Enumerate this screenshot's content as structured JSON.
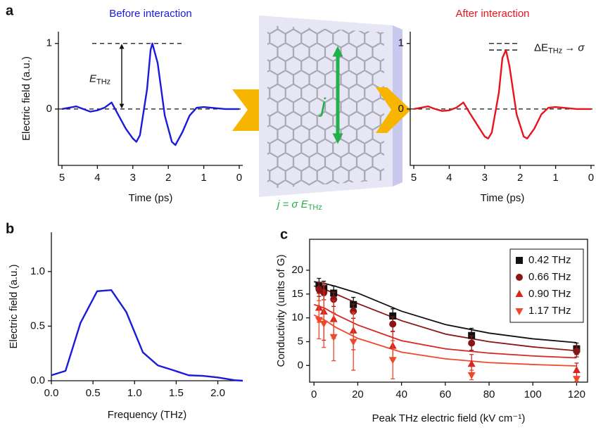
{
  "chart_data": [
    {
      "type": "line",
      "panel_label": "a",
      "title": "Before interaction",
      "color": "#1a1adb",
      "xlabel": "Time (ps)",
      "ylabel": "Electric field (a.u.)",
      "annotation": {
        "text": "E",
        "subscript": "THz"
      },
      "x": [
        5.0,
        4.8,
        4.6,
        4.4,
        4.2,
        4.0,
        3.8,
        3.6,
        3.4,
        3.2,
        3.0,
        2.9,
        2.8,
        2.6,
        2.5,
        2.45,
        2.3,
        2.1,
        1.9,
        1.8,
        1.6,
        1.4,
        1.2,
        1.0,
        0.8,
        0.4,
        0.0
      ],
      "values": [
        0.0,
        0.02,
        0.04,
        0.0,
        -0.04,
        -0.02,
        0.02,
        0.1,
        -0.1,
        -0.3,
        -0.45,
        -0.5,
        -0.4,
        0.3,
        0.9,
        1.0,
        0.7,
        -0.1,
        -0.5,
        -0.55,
        -0.35,
        -0.1,
        0.02,
        0.03,
        0.02,
        0.0,
        0.0
      ],
      "xlim": [
        5.1,
        -0.1
      ],
      "xticks": [
        5,
        4,
        3,
        2,
        1,
        0
      ],
      "ylim": [
        -0.86,
        1.18
      ],
      "yticks": [
        0,
        1
      ]
    },
    {
      "type": "line",
      "title": "After interaction",
      "color": "#e8141c",
      "xlabel": "Time (ps)",
      "annotation": {
        "text": "ΔE",
        "subscript": "THz",
        "suffix": "→ σ"
      },
      "x": [
        5.0,
        4.8,
        4.6,
        4.4,
        4.2,
        4.0,
        3.8,
        3.6,
        3.4,
        3.2,
        3.0,
        2.9,
        2.8,
        2.6,
        2.5,
        2.4,
        2.3,
        2.1,
        1.9,
        1.8,
        1.6,
        1.4,
        1.2,
        1.0,
        0.8,
        0.4,
        0.0
      ],
      "values": [
        0.0,
        0.02,
        0.04,
        0.0,
        -0.03,
        -0.02,
        0.02,
        0.1,
        -0.08,
        -0.25,
        -0.42,
        -0.45,
        -0.36,
        0.25,
        0.78,
        0.9,
        0.65,
        -0.08,
        -0.42,
        -0.45,
        -0.3,
        -0.08,
        0.02,
        0.03,
        0.02,
        0.0,
        0.0
      ],
      "xlim": [
        5.1,
        -0.1
      ],
      "xticks": [
        5,
        4,
        3,
        2,
        1,
        0
      ],
      "ylim": [
        -0.86,
        1.18
      ],
      "yticks": [
        0,
        1
      ]
    },
    {
      "type": "line",
      "panel_label": "b",
      "color": "#1a1adb",
      "xlabel": "Frequency (THz)",
      "ylabel": "Electric field (a.u.)",
      "x": [
        0,
        0.17,
        0.35,
        0.55,
        0.72,
        0.9,
        1.1,
        1.28,
        1.45,
        1.65,
        1.82,
        2.0,
        2.2,
        2.3
      ],
      "values": [
        0.05,
        0.09,
        0.53,
        0.82,
        0.83,
        0.63,
        0.26,
        0.14,
        0.1,
        0.05,
        0.045,
        0.03,
        0.005,
        0.0
      ],
      "xlim": [
        0,
        2.3
      ],
      "xticks": [
        {
          "value": 0,
          "label": "0.0"
        },
        0.5,
        {
          "value": 1,
          "label": "1.0"
        },
        1.5,
        {
          "value": 2,
          "label": "2.0"
        }
      ],
      "ylim": [
        0,
        1.36
      ],
      "yticks": [
        {
          "value": 0,
          "label": "0.0"
        },
        0.5,
        {
          "value": 1,
          "label": "1.0"
        }
      ]
    },
    {
      "type": "scatter",
      "panel_label": "c",
      "xlabel": "Peak THz electric field (kV cm⁻¹)",
      "ylabel": "Conductivity (units of G)",
      "x": [
        2.3,
        4.5,
        9,
        18,
        36,
        72,
        120
      ],
      "fit_x": [
        0,
        5,
        10,
        20,
        40,
        60,
        80,
        100,
        120
      ],
      "series": [
        {
          "name": "0.42 THz",
          "color": "#111111",
          "marker": "square",
          "values": [
            16.8,
            16.2,
            15.2,
            12.8,
            10.4,
            6.3,
            3.5
          ],
          "errors": [
            1.5,
            1.5,
            1.5,
            1.5,
            1.5,
            1.5,
            1.2
          ],
          "fit": [
            17.6,
            17.2,
            16.6,
            15.2,
            11.4,
            8.6,
            6.8,
            5.6,
            4.8
          ]
        },
        {
          "name": "0.66 THz",
          "color": "#8b1515",
          "marker": "circle",
          "values": [
            16.0,
            15.3,
            13.9,
            11.4,
            8.7,
            4.7,
            3.0
          ],
          "errors": [
            1.5,
            1.5,
            1.5,
            1.5,
            1.5,
            1.5,
            1.2
          ],
          "fit": [
            16.7,
            16.0,
            15.0,
            13.0,
            9.4,
            6.6,
            5.0,
            3.9,
            3.1
          ]
        },
        {
          "name": "0.90 THz",
          "color": "#d7261e",
          "marker": "triangle-up",
          "values": [
            12.1,
            11.3,
            9.7,
            7.3,
            4.1,
            0.3,
            -1.0
          ],
          "errors": [
            3,
            6,
            4,
            4,
            3,
            2,
            1.5
          ],
          "fit": [
            12.8,
            12.0,
            10.7,
            8.5,
            5.2,
            3.5,
            2.6,
            2.0,
            1.6
          ]
        },
        {
          "name": "1.17 THz",
          "color": "#f0482a",
          "marker": "triangle-down",
          "values": [
            9.6,
            8.8,
            6.0,
            5.0,
            1.2,
            -2.0,
            -2.8
          ],
          "errors": [
            4,
            5,
            5,
            6,
            4,
            1,
            0.5
          ],
          "fit": [
            10.6,
            9.5,
            8.0,
            5.7,
            2.8,
            1.4,
            0.6,
            0.2,
            -0.1
          ]
        }
      ],
      "xlim": [
        -2,
        125
      ],
      "xticks": [
        0,
        20,
        40,
        60,
        80,
        100,
        120
      ],
      "ylim": [
        -3.5,
        26.5
      ],
      "yticks": [
        0,
        5,
        10,
        15,
        20
      ],
      "legend": "upper-right"
    }
  ],
  "diagram": {
    "current_label": "j",
    "equation": "j = σ E",
    "equation_subscript": "THz"
  }
}
